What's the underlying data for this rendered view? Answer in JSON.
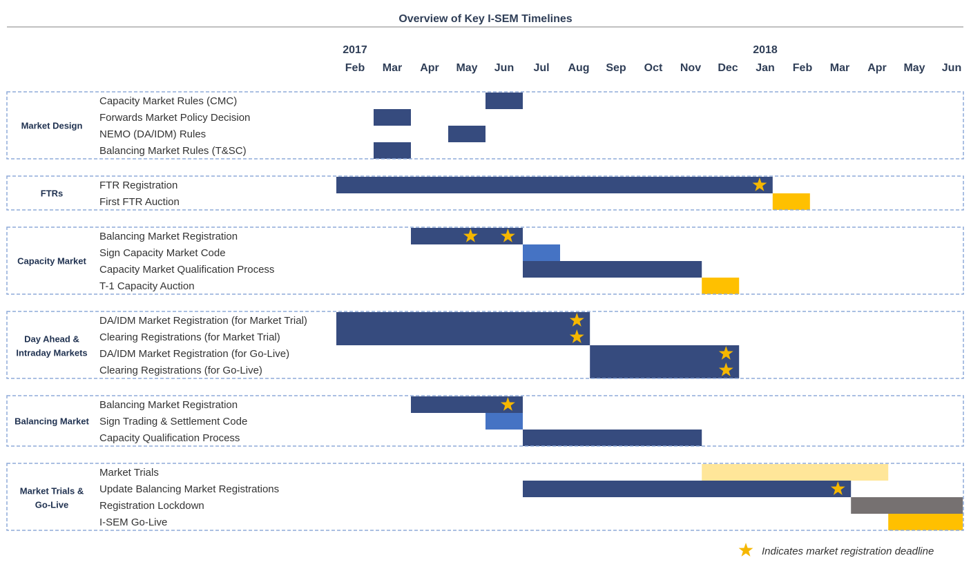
{
  "chart_data": {
    "type": "gantt",
    "title": "Overview of Key I-SEM Timelines",
    "years": [
      {
        "label": "2017",
        "month_index": 0
      },
      {
        "label": "2018",
        "month_index": 11
      }
    ],
    "months": [
      "Feb",
      "Mar",
      "Apr",
      "May",
      "Jun",
      "Jul",
      "Aug",
      "Sep",
      "Oct",
      "Nov",
      "Dec",
      "Jan",
      "Feb",
      "Mar",
      "Apr",
      "May",
      "Jun"
    ],
    "colors": {
      "dark": "#364b7e",
      "medium": "#4573c4",
      "gold": "#ffc000",
      "light": "#ffe699",
      "grey": "#767171",
      "star": "#f5b700",
      "group_border": "#8eaad8"
    },
    "groups": [
      {
        "name": "Market Design",
        "tasks": [
          {
            "label": "Capacity Market Rules (CMC)",
            "bars": [
              {
                "start": 4,
                "end": 5,
                "color": "dark"
              }
            ],
            "stars": []
          },
          {
            "label": "Forwards Market Policy Decision",
            "bars": [
              {
                "start": 1,
                "end": 2,
                "color": "dark"
              }
            ],
            "stars": []
          },
          {
            "label": "NEMO (DA/IDM) Rules",
            "bars": [
              {
                "start": 3,
                "end": 4,
                "color": "dark"
              }
            ],
            "stars": []
          },
          {
            "label": "Balancing Market Rules (T&SC)",
            "bars": [
              {
                "start": 1,
                "end": 2,
                "color": "dark"
              }
            ],
            "stars": []
          }
        ]
      },
      {
        "name": "FTRs",
        "tasks": [
          {
            "label": "FTR Registration",
            "bars": [
              {
                "start": 0,
                "end": 11.7,
                "color": "dark"
              }
            ],
            "stars": [
              11.35
            ]
          },
          {
            "label": "First FTR Auction",
            "bars": [
              {
                "start": 11.7,
                "end": 12.7,
                "color": "gold"
              }
            ],
            "stars": []
          }
        ]
      },
      {
        "name": "Capacity Market",
        "tasks": [
          {
            "label": "Balancing Market Registration",
            "bars": [
              {
                "start": 2,
                "end": 5,
                "color": "dark"
              }
            ],
            "stars": [
              3.6,
              4.6
            ]
          },
          {
            "label": "Sign Capacity Market Code",
            "bars": [
              {
                "start": 5,
                "end": 6,
                "color": "medium"
              }
            ],
            "stars": []
          },
          {
            "label": "Capacity Market Qualification Process",
            "bars": [
              {
                "start": 5,
                "end": 9.8,
                "color": "dark"
              }
            ],
            "stars": []
          },
          {
            "label": "T-1 Capacity Auction",
            "bars": [
              {
                "start": 9.8,
                "end": 10.8,
                "color": "gold"
              }
            ],
            "stars": []
          }
        ]
      },
      {
        "name": "Day Ahead & Intraday Markets",
        "tasks": [
          {
            "label": "DA/IDM Market Registration (for Market Trial)",
            "bars": [
              {
                "start": 0,
                "end": 6.8,
                "color": "dark"
              }
            ],
            "stars": [
              6.45
            ]
          },
          {
            "label": "Clearing Registrations (for Market Trial)",
            "bars": [
              {
                "start": 0,
                "end": 6.8,
                "color": "dark"
              }
            ],
            "stars": [
              6.45
            ]
          },
          {
            "label": "DA/IDM Market Registration (for Go-Live)",
            "bars": [
              {
                "start": 6.8,
                "end": 10.8,
                "color": "dark"
              }
            ],
            "stars": [
              10.45
            ]
          },
          {
            "label": "Clearing Registrations (for Go-Live)",
            "bars": [
              {
                "start": 6.8,
                "end": 10.8,
                "color": "dark"
              }
            ],
            "stars": [
              10.45
            ]
          }
        ]
      },
      {
        "name": "Balancing Market",
        "tasks": [
          {
            "label": "Balancing Market Registration",
            "bars": [
              {
                "start": 2,
                "end": 5,
                "color": "dark"
              }
            ],
            "stars": [
              4.6
            ]
          },
          {
            "label": "Sign Trading & Settlement Code",
            "bars": [
              {
                "start": 4,
                "end": 5,
                "color": "medium"
              }
            ],
            "stars": []
          },
          {
            "label": "Capacity Qualification Process",
            "bars": [
              {
                "start": 5,
                "end": 9.8,
                "color": "dark"
              }
            ],
            "stars": []
          }
        ]
      },
      {
        "name": "Market Trials & Go-Live",
        "tasks": [
          {
            "label": "Market Trials",
            "bars": [
              {
                "start": 9.8,
                "end": 14.8,
                "color": "light"
              }
            ],
            "stars": []
          },
          {
            "label": "Update Balancing Market Registrations",
            "bars": [
              {
                "start": 5,
                "end": 13.8,
                "color": "dark"
              }
            ],
            "stars": [
              13.45
            ]
          },
          {
            "label": "Registration Lockdown",
            "bars": [
              {
                "start": 13.8,
                "end": 16.8,
                "color": "grey"
              }
            ],
            "stars": []
          },
          {
            "label": "I-SEM Go-Live",
            "bars": [
              {
                "start": 14.8,
                "end": 16.8,
                "color": "gold"
              }
            ],
            "stars": []
          }
        ]
      }
    ],
    "legend": {
      "symbol": "star",
      "text": "Indicates market registration deadline"
    }
  }
}
